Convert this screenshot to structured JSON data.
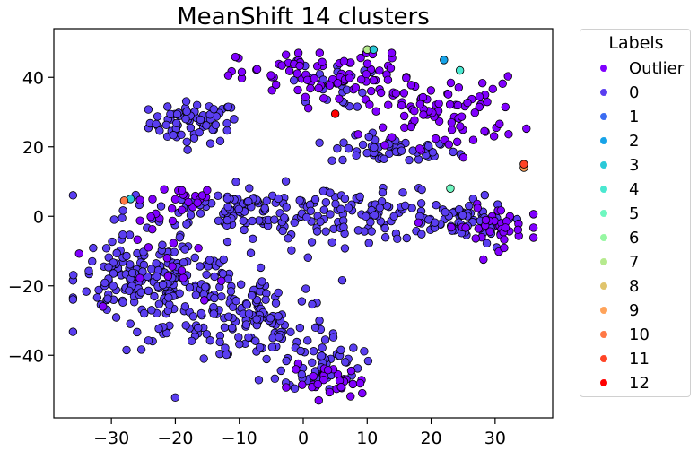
{
  "chart_data": {
    "type": "scatter",
    "title": "MeanShift 14 clusters",
    "xlabel": "",
    "ylabel": "",
    "xlim": [
      -39,
      39
    ],
    "ylim": [
      -58,
      54
    ],
    "xticks": [
      -30,
      -20,
      -10,
      0,
      10,
      20,
      30
    ],
    "yticks": [
      -40,
      -20,
      0,
      20,
      40
    ],
    "tick_labels": {
      "x": [
        "−30",
        "−20",
        "−10",
        "0",
        "10",
        "20",
        "30"
      ],
      "y": [
        "−40",
        "−20",
        "0",
        "20",
        "40"
      ]
    },
    "grid": false,
    "legend": {
      "title": "Labels",
      "placement": "outside-right",
      "entries": [
        {
          "label": "Outlier",
          "color": "#8000ff"
        },
        {
          "label": "0",
          "color": "#5a3ef0"
        },
        {
          "label": "1",
          "color": "#3b6cf2"
        },
        {
          "label": "2",
          "color": "#17a3e8"
        },
        {
          "label": "3",
          "color": "#2ac9d8"
        },
        {
          "label": "4",
          "color": "#4ae8d0"
        },
        {
          "label": "5",
          "color": "#6ff7c0"
        },
        {
          "label": "6",
          "color": "#96f7a2"
        },
        {
          "label": "7",
          "color": "#b6ea8e"
        },
        {
          "label": "8",
          "color": "#e0c46c"
        },
        {
          "label": "9",
          "color": "#ffa35a"
        },
        {
          "label": "10",
          "color": "#ff7845"
        },
        {
          "label": "11",
          "color": "#ff4426"
        },
        {
          "label": "12",
          "color": "#ff0000"
        }
      ]
    },
    "regions_note_values": {
      "outlier_color": "#8000ff",
      "cluster0_color": "#5a3ef0",
      "marker_edge_color": "#000000"
    },
    "cluster_regions": [
      {
        "series": "0",
        "cx": -17,
        "cy": 27,
        "sx": 3.5,
        "sy": 3.0,
        "n": 70
      },
      {
        "series": "0",
        "cx": 14,
        "cy": 19,
        "sx": 5.0,
        "sy": 2.0,
        "n": 55
      },
      {
        "series": "0",
        "cx": -10,
        "cy": 2,
        "sx": 9,
        "sy": 3.5,
        "n": 110
      },
      {
        "series": "0",
        "cx": 10,
        "cy": 0,
        "sx": 9,
        "sy": 3.5,
        "n": 100
      },
      {
        "series": "0",
        "cx": -26,
        "cy": -18,
        "sx": 5,
        "sy": 6,
        "n": 120
      },
      {
        "series": "0",
        "cx": -16,
        "cy": -24,
        "sx": 7,
        "sy": 7,
        "n": 140
      },
      {
        "series": "0",
        "cx": -6,
        "cy": -30,
        "sx": 5,
        "sy": 6,
        "n": 80
      },
      {
        "series": "0",
        "cx": 3,
        "cy": -42,
        "sx": 3,
        "sy": 4,
        "n": 55
      },
      {
        "series": "0",
        "cx": 24,
        "cy": -2,
        "sx": 4,
        "sy": 3,
        "n": 45
      },
      {
        "series": "0",
        "cx": 4,
        "cy": 38,
        "sx": 3,
        "sy": 3.5,
        "n": 25
      },
      {
        "series": "Outlier",
        "cx": 4,
        "cy": 40,
        "sx": 7,
        "sy": 4,
        "n": 90
      },
      {
        "series": "Outlier",
        "cx": 22,
        "cy": 30,
        "sx": 6,
        "sy": 5,
        "n": 80
      },
      {
        "series": "Outlier",
        "cx": 30,
        "cy": -3,
        "sx": 4,
        "sy": 3,
        "n": 40
      },
      {
        "series": "Outlier",
        "cx": 4,
        "cy": -48,
        "sx": 3,
        "sy": 2.5,
        "n": 30
      },
      {
        "series": "Outlier",
        "cx": -17,
        "cy": 5,
        "sx": 4,
        "sy": 2,
        "n": 18
      },
      {
        "series": "Outlier",
        "cx": -20,
        "cy": -12,
        "sx": 4,
        "sy": 8,
        "n": 20
      }
    ],
    "special_points": [
      {
        "series": "2",
        "x": 22,
        "y": 45
      },
      {
        "series": "3",
        "x": -27,
        "y": 5
      },
      {
        "series": "4",
        "x": 24.5,
        "y": 42
      },
      {
        "series": "5",
        "x": 23,
        "y": 8
      },
      {
        "series": "7",
        "x": 10,
        "y": 48
      },
      {
        "series": "3",
        "x": 11,
        "y": 48
      },
      {
        "series": "9",
        "x": 34.5,
        "y": 14
      },
      {
        "series": "10",
        "x": -28,
        "y": 4.5
      },
      {
        "series": "11",
        "x": 34.5,
        "y": 15
      },
      {
        "series": "12",
        "x": 5,
        "y": 29.5
      }
    ]
  }
}
